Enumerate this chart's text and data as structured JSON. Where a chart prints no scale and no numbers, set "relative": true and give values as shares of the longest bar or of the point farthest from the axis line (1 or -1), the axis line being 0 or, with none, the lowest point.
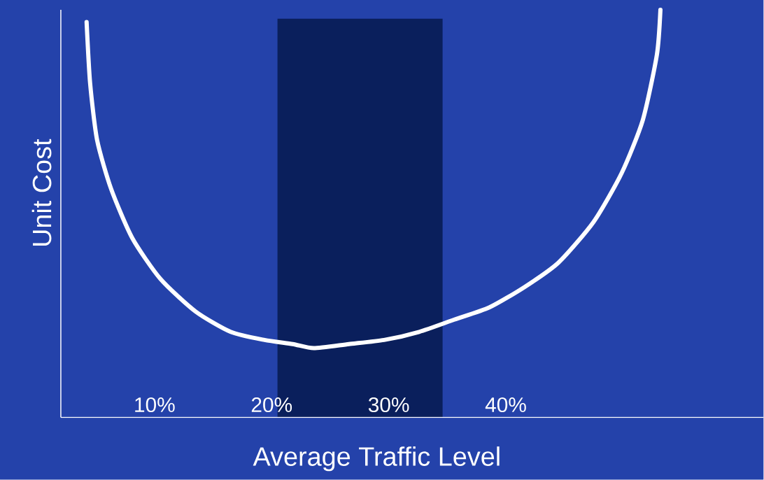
{
  "chart_data": {
    "type": "line",
    "relative": true,
    "xlabel": "Average Traffic Level",
    "ylabel": "Unit Cost",
    "xlim": [
      2,
      62
    ],
    "xticks": [
      {
        "value": 10,
        "label": "10%"
      },
      {
        "value": 20,
        "label": "20%"
      },
      {
        "value": 30,
        "label": "30%"
      },
      {
        "value": 40,
        "label": "40%"
      }
    ],
    "bands": [
      {
        "axis": "x",
        "from": 20.5,
        "to": 34.6,
        "color": "#0a1f5c"
      }
    ],
    "series": [
      {
        "color": "#ffffff",
        "x": [
          4.2,
          4.5,
          5.1,
          6.3,
          8.1,
          10.5,
          13.5,
          16.5,
          19.4,
          21.8,
          23.6,
          26.6,
          29.6,
          32.6,
          35.6,
          38.6,
          41.6,
          44.5,
          47.5,
          49.9,
          51.7,
          52.9,
          53.2
        ],
        "values": [
          0.97,
          0.82,
          0.68,
          0.56,
          0.44,
          0.34,
          0.26,
          0.21,
          0.19,
          0.18,
          0.17,
          0.18,
          0.19,
          0.21,
          0.24,
          0.27,
          0.32,
          0.38,
          0.48,
          0.6,
          0.73,
          0.89,
          1
        ]
      }
    ],
    "grid": false,
    "marker": "none",
    "line_style": "solid"
  }
}
